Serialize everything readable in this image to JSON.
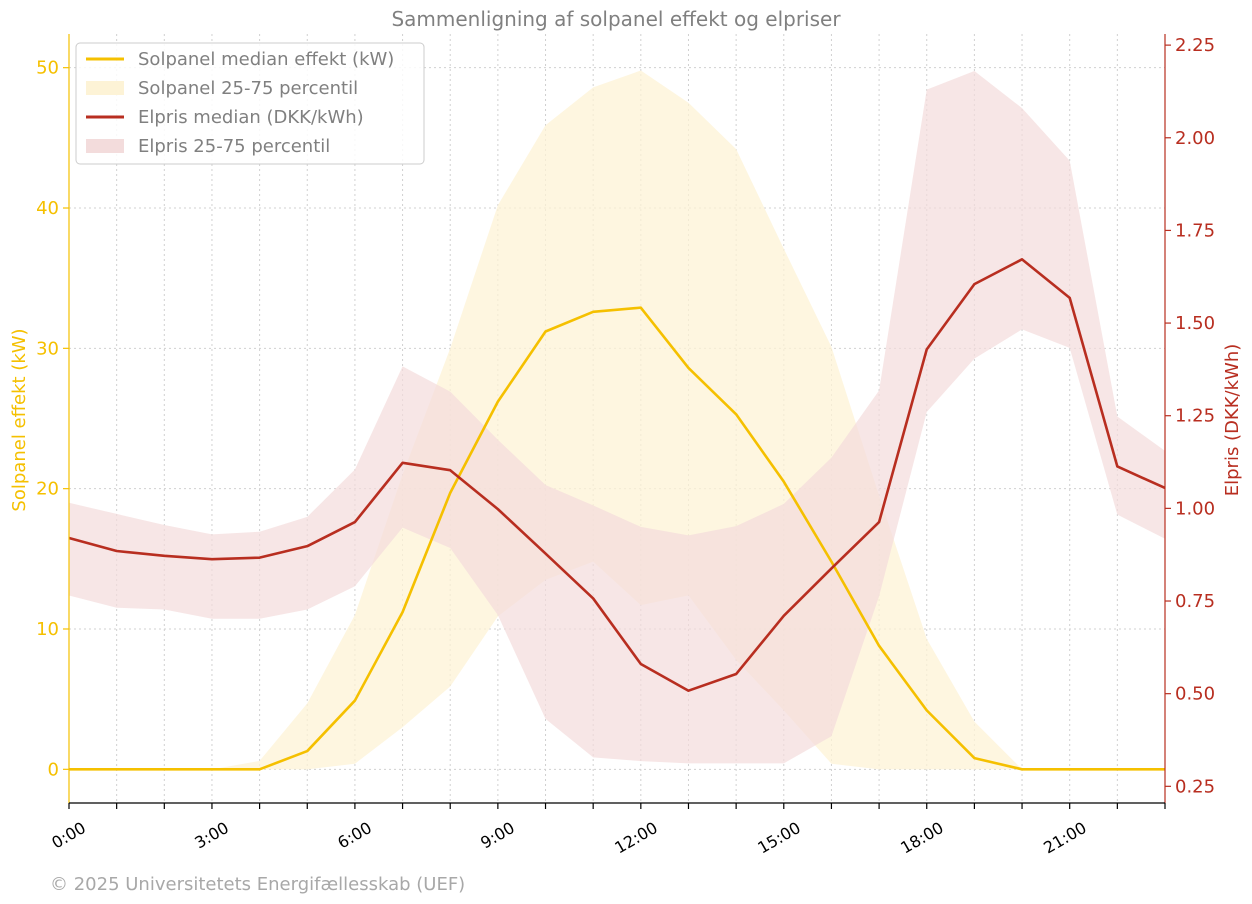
{
  "chart_data": {
    "type": "line",
    "title": "Sammenligning af solpanel effekt og elpriser",
    "x": [
      "0:00",
      "1:00",
      "2:00",
      "3:00",
      "4:00",
      "5:00",
      "6:00",
      "7:00",
      "8:00",
      "9:00",
      "10:00",
      "11:00",
      "12:00",
      "13:00",
      "14:00",
      "15:00",
      "16:00",
      "17:00",
      "18:00",
      "19:00",
      "20:00",
      "21:00",
      "22:00",
      "23:00"
    ],
    "x_tick_labels": [
      "0:00",
      "3:00",
      "6:00",
      "9:00",
      "12:00",
      "15:00",
      "18:00",
      "21:00"
    ],
    "xlim": [
      0,
      23
    ],
    "y_left": {
      "label": "Solpanel effekt (kW)",
      "lim": [
        -2.4,
        52.4
      ],
      "ticks": [
        0,
        10,
        20,
        30,
        40,
        50
      ],
      "tick_labels": [
        "0",
        "10",
        "20",
        "30",
        "40",
        "50"
      ]
    },
    "y_right": {
      "label": "Elpris (DKK/kWh)",
      "lim": [
        0.205,
        2.28
      ],
      "ticks": [
        0.25,
        0.5,
        0.75,
        1.0,
        1.25,
        1.5,
        1.75,
        2.0,
        2.25
      ],
      "tick_labels": [
        "0.25",
        "0.50",
        "0.75",
        "1.00",
        "1.25",
        "1.50",
        "1.75",
        "2.00",
        "2.25"
      ]
    },
    "grid": true,
    "legend_position": "top-left",
    "series": [
      {
        "name": "Solpanel median effekt (kW)",
        "kind": "line",
        "axis": "left",
        "color": "#f5c000",
        "values": [
          0,
          0,
          0,
          0,
          0,
          1.3,
          4.9,
          11.2,
          19.7,
          26.2,
          31.2,
          32.6,
          32.9,
          28.6,
          25.3,
          20.5,
          14.8,
          8.8,
          4.2,
          0.8,
          0,
          0,
          0,
          0
        ]
      },
      {
        "name": "Solpanel 25-75 percentil",
        "kind": "band",
        "axis": "left",
        "color": "#fdf3d6",
        "lower": [
          0,
          0,
          0,
          0,
          0,
          0,
          0.4,
          3.0,
          5.9,
          10.9,
          13.5,
          14.8,
          11.7,
          12.4,
          7.8,
          4.2,
          0.4,
          0,
          0,
          0,
          0,
          0,
          0,
          0
        ],
        "upper": [
          0,
          0,
          0,
          0,
          0.6,
          4.7,
          11.0,
          21.0,
          30.0,
          40.2,
          45.9,
          48.6,
          49.8,
          47.5,
          44.2,
          37.1,
          30.1,
          19.5,
          9.3,
          3.4,
          0,
          0,
          0,
          0
        ]
      },
      {
        "name": "Elpris median (DKK/kWh)",
        "kind": "line",
        "axis": "right",
        "color": "#b82e20",
        "values": [
          0.92,
          0.885,
          0.872,
          0.863,
          0.867,
          0.898,
          0.963,
          1.123,
          1.103,
          0.998,
          0.878,
          0.757,
          0.58,
          0.508,
          0.553,
          0.71,
          0.838,
          0.963,
          1.429,
          1.605,
          1.672,
          1.568,
          1.113,
          1.055
        ]
      },
      {
        "name": "Elpris 25-75 percentil",
        "kind": "band",
        "axis": "right",
        "color": "#f3dcdc",
        "lower": [
          0.765,
          0.732,
          0.727,
          0.702,
          0.702,
          0.727,
          0.79,
          0.948,
          0.893,
          0.712,
          0.432,
          0.328,
          0.318,
          0.312,
          0.312,
          0.312,
          0.385,
          0.763,
          1.26,
          1.404,
          1.483,
          1.433,
          0.983,
          0.918
        ],
        "upper": [
          1.015,
          0.985,
          0.955,
          0.93,
          0.937,
          0.977,
          1.105,
          1.383,
          1.315,
          1.185,
          1.063,
          1.008,
          0.95,
          0.927,
          0.952,
          1.012,
          1.137,
          1.318,
          2.13,
          2.18,
          2.08,
          1.938,
          1.248,
          1.155
        ]
      }
    ]
  },
  "footer": {
    "copyright": "© 2025 Universitetets Energifællesskab (UEF)"
  }
}
